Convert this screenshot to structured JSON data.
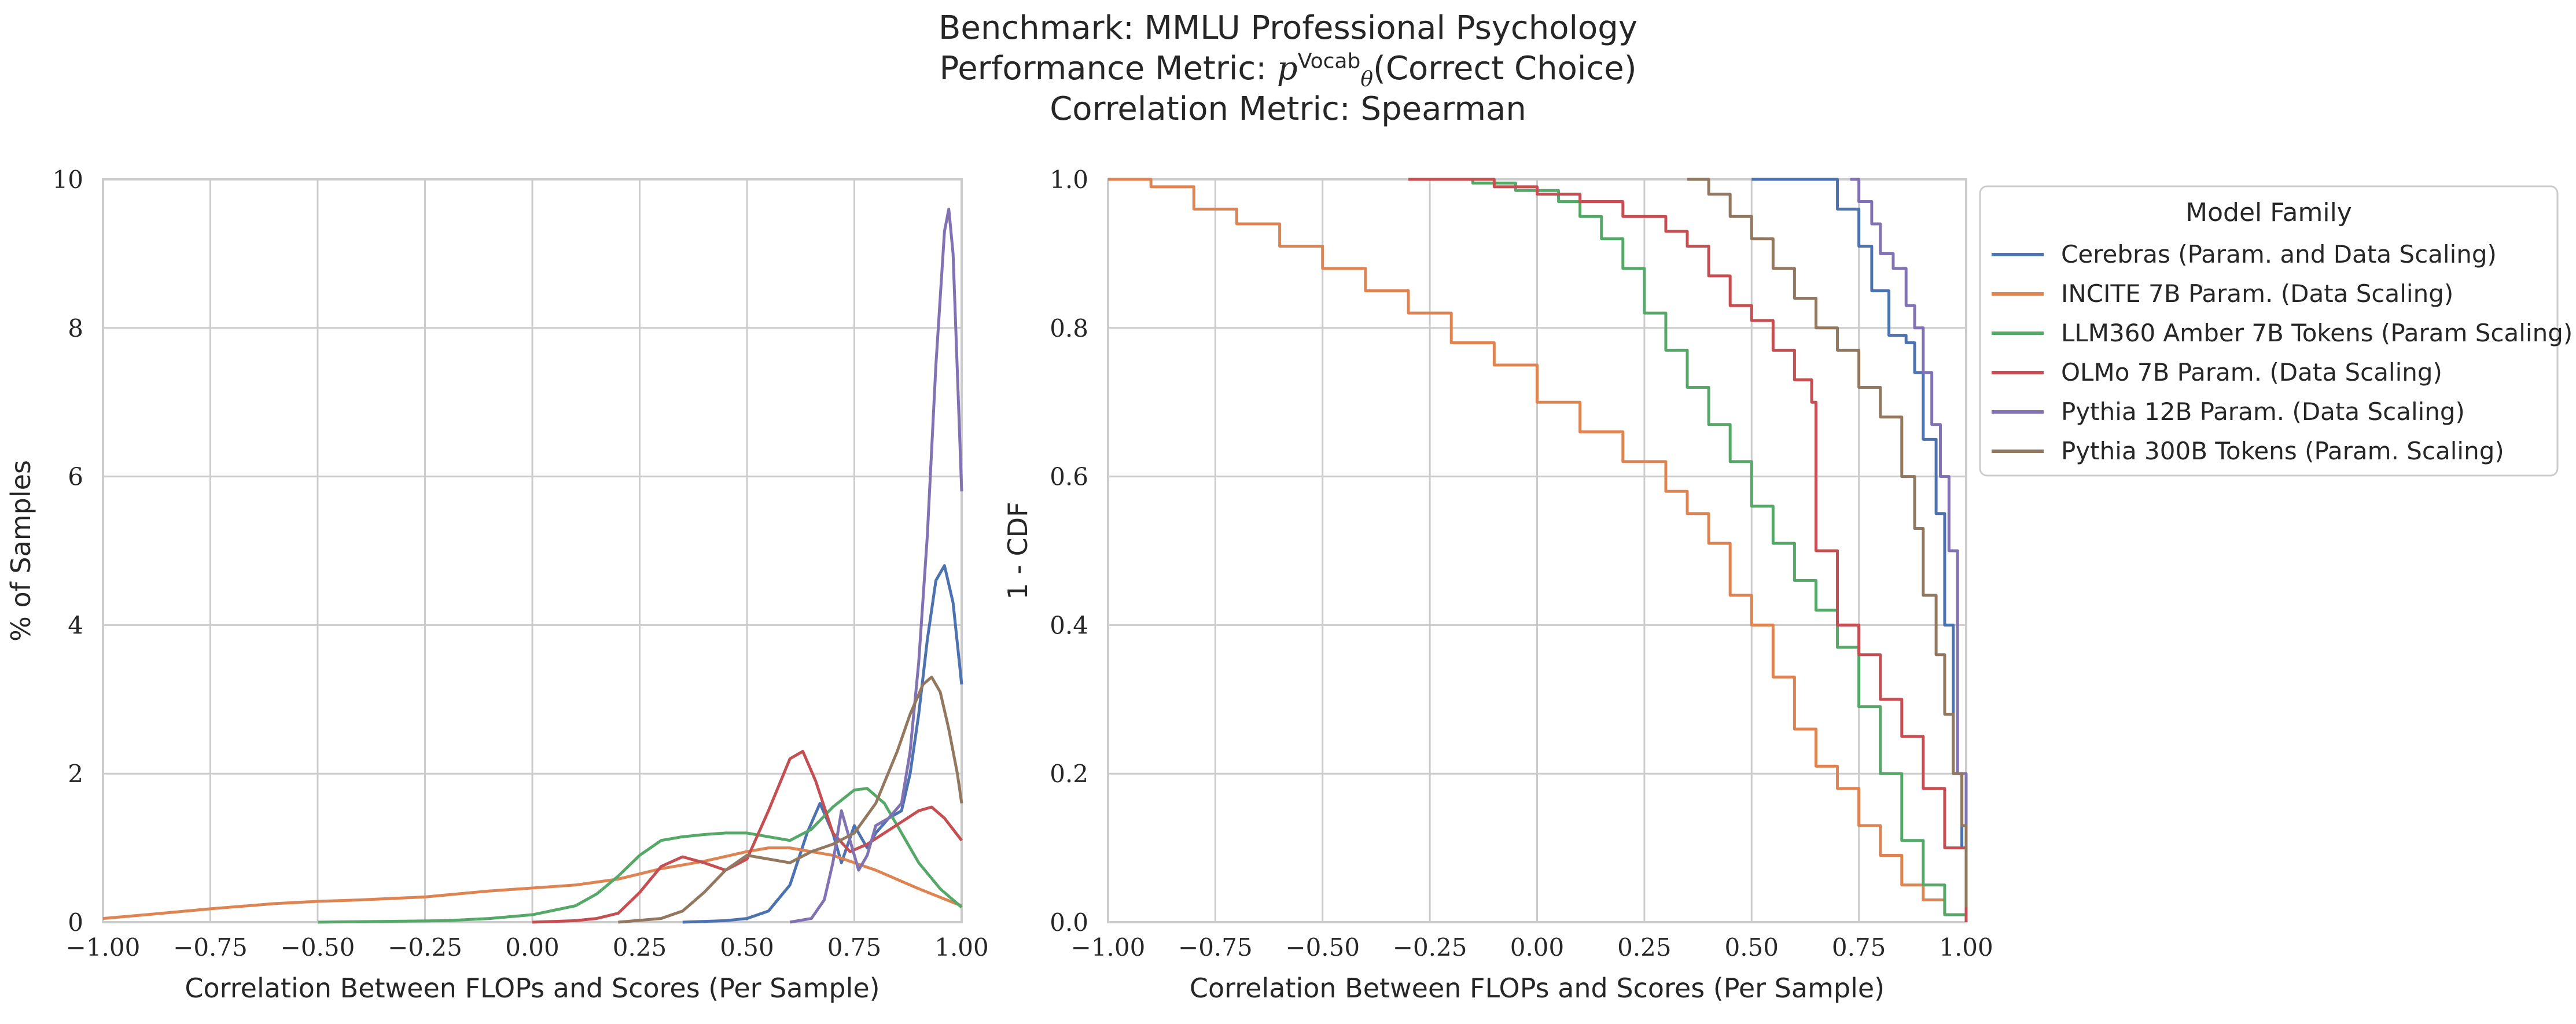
{
  "title": {
    "line1": "Benchmark: MMLU Professional Psychology",
    "line2_prefix": "Performance Metric: ",
    "line2_math": "p",
    "line2_sup": "Vocab",
    "line2_sub": "θ",
    "line2_suffix": "(Correct Choice)",
    "line3": "Correlation Metric: Spearman"
  },
  "legend": {
    "title": "Model Family",
    "placement": "outside right of right panel, upper"
  },
  "colors": {
    "Cerebras (Param. and Data Scaling)": "#4c72b0",
    "INCITE 7B Param. (Data Scaling)": "#dd8452",
    "LLM360 Amber 7B Tokens (Param Scaling)": "#55a868",
    "OLMo 7B Param. (Data Scaling)": "#c44e52",
    "Pythia 12B Param. (Data Scaling)": "#8172b3",
    "Pythia 300B Tokens (Param. Scaling)": "#937860"
  },
  "chart_data": [
    {
      "type": "line",
      "kind": "kde",
      "xlabel": "Correlation Between FLOPs and Scores (Per Sample)",
      "ylabel": "% of Samples",
      "xlim": [
        -1.0,
        1.0
      ],
      "ylim": [
        0,
        10
      ],
      "xticks": [
        "−1.00",
        "−0.75",
        "−0.50",
        "−0.25",
        "0.00",
        "0.25",
        "0.50",
        "0.75",
        "1.00"
      ],
      "yticks": [
        "0",
        "2",
        "4",
        "6",
        "8",
        "10"
      ],
      "grid": true,
      "series": [
        {
          "name": "Cerebras (Param. and Data Scaling)",
          "x": [
            0.35,
            0.45,
            0.5,
            0.55,
            0.6,
            0.64,
            0.67,
            0.7,
            0.72,
            0.75,
            0.78,
            0.8,
            0.83,
            0.86,
            0.88,
            0.9,
            0.92,
            0.94,
            0.96,
            0.98,
            1.0
          ],
          "y": [
            0,
            0.02,
            0.05,
            0.15,
            0.5,
            1.2,
            1.6,
            1.2,
            0.8,
            1.3,
            1.0,
            1.2,
            1.4,
            1.5,
            2.0,
            2.8,
            3.8,
            4.6,
            4.8,
            4.3,
            3.2
          ]
        },
        {
          "name": "INCITE 7B Param. (Data Scaling)",
          "x": [
            -1.0,
            -0.9,
            -0.75,
            -0.6,
            -0.5,
            -0.4,
            -0.25,
            -0.1,
            0.0,
            0.1,
            0.2,
            0.3,
            0.4,
            0.5,
            0.55,
            0.6,
            0.7,
            0.8,
            0.9,
            1.0
          ],
          "y": [
            0.05,
            0.1,
            0.18,
            0.25,
            0.28,
            0.3,
            0.34,
            0.42,
            0.46,
            0.5,
            0.58,
            0.72,
            0.82,
            0.95,
            1.0,
            1.0,
            0.9,
            0.7,
            0.45,
            0.22
          ]
        },
        {
          "name": "LLM360 Amber 7B Tokens (Param Scaling)",
          "x": [
            -0.5,
            -0.2,
            -0.1,
            0.0,
            0.1,
            0.15,
            0.2,
            0.25,
            0.3,
            0.35,
            0.4,
            0.45,
            0.5,
            0.55,
            0.6,
            0.65,
            0.7,
            0.75,
            0.78,
            0.82,
            0.86,
            0.9,
            0.95,
            1.0
          ],
          "y": [
            0,
            0.02,
            0.05,
            0.1,
            0.22,
            0.38,
            0.62,
            0.9,
            1.1,
            1.15,
            1.18,
            1.2,
            1.2,
            1.15,
            1.1,
            1.25,
            1.55,
            1.78,
            1.8,
            1.6,
            1.2,
            0.8,
            0.45,
            0.2
          ]
        },
        {
          "name": "OLMo 7B Param. (Data Scaling)",
          "x": [
            0.0,
            0.1,
            0.15,
            0.2,
            0.25,
            0.3,
            0.35,
            0.4,
            0.45,
            0.5,
            0.55,
            0.6,
            0.63,
            0.66,
            0.7,
            0.74,
            0.78,
            0.82,
            0.86,
            0.9,
            0.93,
            0.96,
            1.0
          ],
          "y": [
            0,
            0.02,
            0.05,
            0.12,
            0.4,
            0.75,
            0.88,
            0.8,
            0.7,
            0.85,
            1.5,
            2.2,
            2.3,
            1.9,
            1.2,
            0.95,
            1.05,
            1.2,
            1.35,
            1.5,
            1.55,
            1.4,
            1.1
          ]
        },
        {
          "name": "Pythia 12B Param. (Data Scaling)",
          "x": [
            0.6,
            0.65,
            0.68,
            0.7,
            0.72,
            0.74,
            0.76,
            0.78,
            0.8,
            0.83,
            0.86,
            0.88,
            0.9,
            0.92,
            0.94,
            0.96,
            0.97,
            0.98,
            0.99,
            1.0
          ],
          "y": [
            0,
            0.05,
            0.3,
            0.8,
            1.5,
            1.1,
            0.7,
            0.9,
            1.3,
            1.4,
            1.6,
            2.3,
            3.5,
            5.2,
            7.5,
            9.3,
            9.6,
            9.0,
            7.4,
            5.8
          ]
        },
        {
          "name": "Pythia 300B Tokens (Param. Scaling)",
          "x": [
            0.2,
            0.3,
            0.35,
            0.4,
            0.45,
            0.5,
            0.55,
            0.6,
            0.65,
            0.7,
            0.75,
            0.8,
            0.85,
            0.88,
            0.91,
            0.93,
            0.95,
            0.97,
            0.99,
            1.0
          ],
          "y": [
            0,
            0.05,
            0.15,
            0.4,
            0.7,
            0.9,
            0.85,
            0.8,
            0.95,
            1.05,
            1.2,
            1.6,
            2.3,
            2.8,
            3.2,
            3.3,
            3.1,
            2.6,
            2.0,
            1.6
          ]
        }
      ]
    },
    {
      "type": "line",
      "kind": "ecdf_complement_step",
      "xlabel": "Correlation Between FLOPs and Scores (Per Sample)",
      "ylabel": "1 - CDF",
      "xlim": [
        -1.0,
        1.0
      ],
      "ylim": [
        0.0,
        1.0
      ],
      "xticks": [
        "−1.00",
        "−0.75",
        "−0.50",
        "−0.25",
        "0.00",
        "0.25",
        "0.50",
        "0.75",
        "1.00"
      ],
      "yticks": [
        "0.0",
        "0.2",
        "0.4",
        "0.6",
        "0.8",
        "1.0"
      ],
      "grid": true,
      "series": [
        {
          "name": "Cerebras (Param. and Data Scaling)",
          "x": [
            0.5,
            0.65,
            0.7,
            0.75,
            0.78,
            0.82,
            0.86,
            0.88,
            0.9,
            0.93,
            0.95,
            0.97,
            0.99,
            1.0
          ],
          "y": [
            1.0,
            1.0,
            0.96,
            0.91,
            0.85,
            0.79,
            0.78,
            0.74,
            0.65,
            0.55,
            0.4,
            0.2,
            0.1,
            0.09
          ]
        },
        {
          "name": "INCITE 7B Param. (Data Scaling)",
          "x": [
            -1.0,
            -0.9,
            -0.8,
            -0.7,
            -0.6,
            -0.5,
            -0.4,
            -0.3,
            -0.2,
            -0.1,
            0.0,
            0.1,
            0.2,
            0.3,
            0.35,
            0.4,
            0.45,
            0.5,
            0.55,
            0.6,
            0.65,
            0.7,
            0.75,
            0.8,
            0.85,
            0.9,
            0.95,
            1.0
          ],
          "y": [
            1.0,
            0.99,
            0.96,
            0.94,
            0.91,
            0.88,
            0.85,
            0.82,
            0.78,
            0.75,
            0.7,
            0.66,
            0.62,
            0.58,
            0.55,
            0.51,
            0.44,
            0.4,
            0.33,
            0.26,
            0.21,
            0.18,
            0.13,
            0.09,
            0.05,
            0.03,
            0.01,
            0.0
          ]
        },
        {
          "name": "LLM360 Amber 7B Tokens (Param Scaling)",
          "x": [
            -0.3,
            -0.15,
            -0.05,
            0.05,
            0.1,
            0.15,
            0.2,
            0.25,
            0.3,
            0.35,
            0.4,
            0.45,
            0.5,
            0.55,
            0.6,
            0.65,
            0.7,
            0.75,
            0.8,
            0.85,
            0.9,
            0.95,
            1.0
          ],
          "y": [
            1.0,
            0.995,
            0.985,
            0.97,
            0.95,
            0.92,
            0.88,
            0.82,
            0.77,
            0.72,
            0.67,
            0.62,
            0.56,
            0.51,
            0.46,
            0.42,
            0.37,
            0.29,
            0.2,
            0.11,
            0.05,
            0.01,
            0.0
          ]
        },
        {
          "name": "OLMo 7B Param. (Data Scaling)",
          "x": [
            -0.3,
            -0.1,
            0.0,
            0.1,
            0.2,
            0.3,
            0.35,
            0.4,
            0.45,
            0.5,
            0.55,
            0.6,
            0.64,
            0.65,
            0.7,
            0.75,
            0.8,
            0.85,
            0.9,
            0.95,
            1.0
          ],
          "y": [
            1.0,
            0.99,
            0.98,
            0.97,
            0.95,
            0.93,
            0.91,
            0.87,
            0.83,
            0.81,
            0.77,
            0.73,
            0.7,
            0.5,
            0.4,
            0.36,
            0.3,
            0.25,
            0.18,
            0.1,
            0.0
          ]
        },
        {
          "name": "Pythia 12B Param. (Data Scaling)",
          "x": [
            0.73,
            0.75,
            0.78,
            0.8,
            0.83,
            0.86,
            0.88,
            0.9,
            0.92,
            0.94,
            0.96,
            0.98,
            1.0
          ],
          "y": [
            1.0,
            0.97,
            0.94,
            0.9,
            0.88,
            0.83,
            0.8,
            0.74,
            0.67,
            0.6,
            0.5,
            0.2,
            0.1
          ]
        },
        {
          "name": "Pythia 300B Tokens (Param. Scaling)",
          "x": [
            0.35,
            0.4,
            0.45,
            0.5,
            0.55,
            0.6,
            0.65,
            0.7,
            0.75,
            0.8,
            0.85,
            0.88,
            0.9,
            0.93,
            0.95,
            0.97,
            0.99,
            1.0
          ],
          "y": [
            1.0,
            0.98,
            0.95,
            0.92,
            0.88,
            0.84,
            0.8,
            0.77,
            0.72,
            0.68,
            0.6,
            0.53,
            0.44,
            0.36,
            0.28,
            0.2,
            0.13,
            0.02
          ]
        }
      ]
    }
  ]
}
